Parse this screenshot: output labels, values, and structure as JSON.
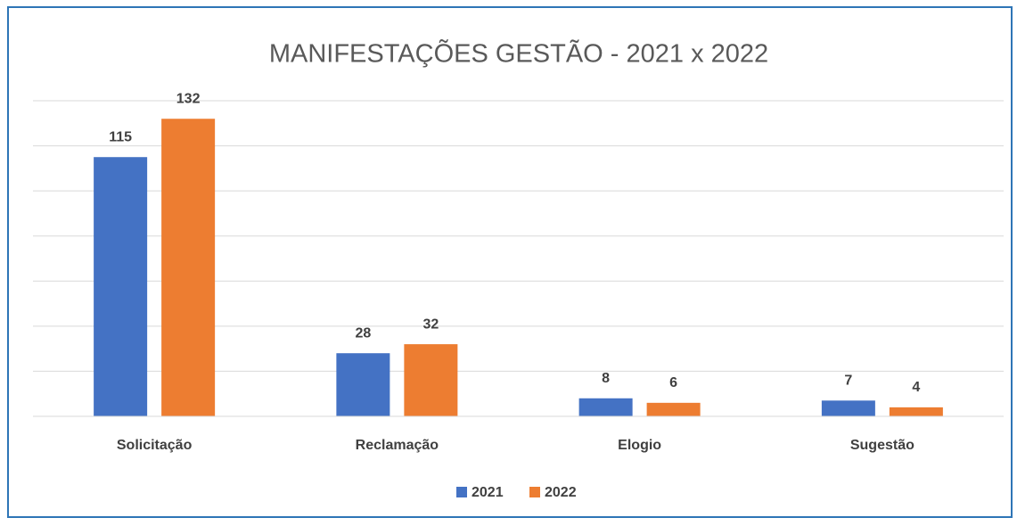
{
  "chart_data": {
    "type": "bar",
    "title": "MANIFESTAÇÕES GESTÃO - 2021 x 2022",
    "categories": [
      "Solicitação",
      "Reclamação",
      "Elogio",
      "Sugestão"
    ],
    "series": [
      {
        "name": "2021",
        "color": "#4472c4",
        "values": [
          115,
          28,
          8,
          7
        ]
      },
      {
        "name": "2022",
        "color": "#ed7d31",
        "values": [
          132,
          32,
          6,
          4
        ]
      }
    ],
    "ylim": [
      0,
      140
    ],
    "yticks": [
      0,
      20,
      40,
      60,
      80,
      100,
      120,
      140
    ],
    "grid": true,
    "legend": "bottom"
  }
}
